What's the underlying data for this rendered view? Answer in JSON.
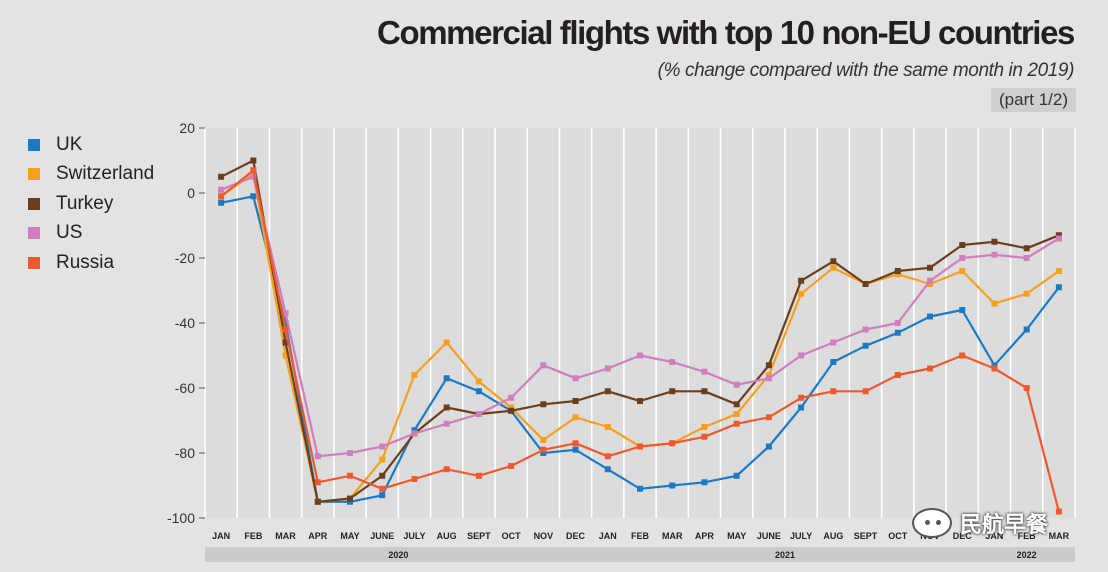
{
  "chart_data": {
    "type": "line",
    "title": "Commercial flights with top 10 non-EU countries",
    "subtitle": "(% change compared with the same month in 2019)",
    "part_label": "(part 1/2)",
    "xlabel": "",
    "ylabel": "",
    "ylim": [
      -100,
      20
    ],
    "yticks": [
      20,
      0,
      -20,
      -40,
      -60,
      -80,
      -100
    ],
    "grid": "vertical",
    "legend_position": "top-left",
    "categories": [
      "JAN",
      "FEB",
      "MAR",
      "APR",
      "MAY",
      "JUNE",
      "JULY",
      "AUG",
      "SEPT",
      "OCT",
      "NOV",
      "DEC",
      "JAN",
      "FEB",
      "MAR",
      "APR",
      "MAY",
      "JUNE",
      "JULY",
      "AUG",
      "SEPT",
      "OCT",
      "NOV",
      "DEC",
      "JAN",
      "FEB",
      "MAR"
    ],
    "year_groups": [
      {
        "label": "2020",
        "start": 0,
        "end": 11
      },
      {
        "label": "2021",
        "start": 12,
        "end": 23
      },
      {
        "label": "2022",
        "start": 24,
        "end": 26
      }
    ],
    "series": [
      {
        "name": "UK",
        "color": "#1a7bc4",
        "values": [
          -3,
          -1,
          -40,
          -95,
          -95,
          -93,
          -73,
          -57,
          -61,
          -67,
          -80,
          -79,
          -85,
          -91,
          -90,
          -89,
          -87,
          -78,
          -66,
          -52,
          -47,
          -43,
          -38,
          -36,
          -53,
          -42,
          -29
        ]
      },
      {
        "name": "Switzerland",
        "color": "#f5a11f",
        "values": [
          -1,
          6,
          -50,
          -95,
          -94,
          -82,
          -56,
          -46,
          -58,
          -66,
          -76,
          -69,
          -72,
          -78,
          -77,
          -72,
          -68,
          -56,
          -31,
          -23,
          -28,
          -25,
          -28,
          -24,
          -34,
          -31,
          -24
        ]
      },
      {
        "name": "Turkey",
        "color": "#6b3f1c",
        "values": [
          5,
          10,
          -46,
          -95,
          -94,
          -87,
          -74,
          -66,
          -68,
          -67,
          -65,
          -64,
          -61,
          -64,
          -61,
          -61,
          -65,
          -53,
          -27,
          -21,
          -28,
          -24,
          -23,
          -16,
          -15,
          -17,
          -13
        ]
      },
      {
        "name": "US",
        "color": "#cf7fbd",
        "values": [
          1,
          5,
          -37,
          -81,
          -80,
          -78,
          -74,
          -71,
          -68,
          -63,
          -53,
          -57,
          -54,
          -50,
          -52,
          -55,
          -59,
          -57,
          -50,
          -46,
          -42,
          -40,
          -27,
          -20,
          -19,
          -20,
          -14
        ]
      },
      {
        "name": "Russia",
        "color": "#ee5a2e",
        "values": [
          -1,
          7,
          -42,
          -89,
          -87,
          -91,
          -88,
          -85,
          -87,
          -84,
          -79,
          -77,
          -81,
          -78,
          -77,
          -75,
          -71,
          -69,
          -63,
          -61,
          -61,
          -56,
          -54,
          -50,
          -54,
          -60,
          -98
        ]
      }
    ]
  },
  "watermark": {
    "icon": "wechat-icon",
    "text": "民航早餐"
  }
}
